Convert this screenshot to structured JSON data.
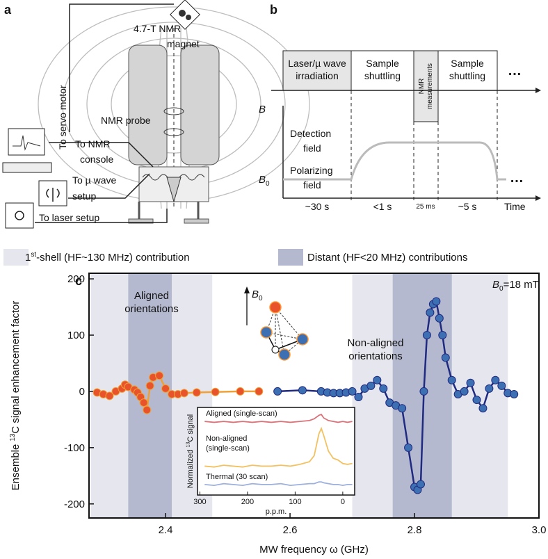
{
  "panel_a": {
    "label": "a",
    "magnet": [
      "4.7-T NMR",
      "magnet"
    ],
    "servo": "To servo motor",
    "probe": "NMR probe",
    "console": [
      "To NMR",
      "console"
    ],
    "microwave": [
      "To µ wave",
      "setup"
    ],
    "laser": "To laser setup"
  },
  "panel_b": {
    "label": "b",
    "steps": [
      [
        "Laser/µ wave",
        "irradiation"
      ],
      [
        "Sample",
        "shuttling"
      ],
      [
        "NMR",
        "measurements"
      ],
      [
        "Sample",
        "shuttling"
      ]
    ],
    "ellipsis": "…",
    "b_axis": "B",
    "b0": [
      "B",
      "0"
    ],
    "detection": [
      "Detection",
      "field"
    ],
    "polarizing": [
      "Polarizing",
      "field"
    ],
    "durations": [
      "~30 s",
      "<1 s",
      "25 ms",
      "~5 s"
    ],
    "time_axis": "Time"
  },
  "legend": [
    {
      "pre": "1",
      "sup": "st",
      "post": "-shell (HF~130 MHz) contribution",
      "color": "#e6e6ee"
    },
    {
      "text": "Distant (HF<20 MHz) contributions",
      "color": "#b4b9cf"
    }
  ],
  "chart_data": [
    {
      "type": "scatter",
      "panel_label": "c",
      "xlabel": "MW frequency ω (GHz)",
      "ylabel": {
        "pre": "Ensemble ",
        "sup": "13",
        "post": "C signal enhancement factor"
      },
      "xlim": [
        2.277,
        3.0
      ],
      "ylim": [
        -225,
        210
      ],
      "xticks": [
        2.4,
        2.6,
        2.8,
        {
          "value": 3.0,
          "label": "3.0"
        }
      ],
      "yticks": [
        -200,
        -100,
        0,
        100,
        200
      ],
      "bands": [
        {
          "start": 2.28,
          "end": 2.475,
          "color": "#e6e6ee"
        },
        {
          "start": 2.7,
          "end": 2.95,
          "color": "#e6e6ee"
        },
        {
          "start": 2.34,
          "end": 2.41,
          "color": "#b4b9cf"
        },
        {
          "start": 2.765,
          "end": 2.86,
          "color": "#b4b9cf"
        }
      ],
      "annotations": {
        "aligned": [
          "Aligned",
          "orientations"
        ],
        "nonaligned": [
          "Non-aligned",
          "orientations"
        ],
        "field": [
          "B",
          "0",
          "=18 mT"
        ],
        "arrow": [
          "B",
          "0"
        ]
      },
      "series": [
        {
          "color": "#e8532b",
          "line_color": "#f0a035",
          "x": [
            2.29,
            2.3,
            2.31,
            2.32,
            2.33,
            2.335,
            2.34,
            2.35,
            2.355,
            2.36,
            2.365,
            2.37,
            2.375,
            2.38,
            2.39,
            2.4,
            2.41,
            2.42,
            2.43,
            2.45,
            2.48,
            2.52,
            2.55
          ],
          "values": [
            -2,
            -5,
            -8,
            0,
            5,
            12,
            8,
            3,
            -2,
            -10,
            -20,
            -33,
            10,
            25,
            28,
            5,
            -5,
            -5,
            -3,
            -2,
            -1,
            0,
            0
          ]
        },
        {
          "color": "#3d6fb3",
          "line_color": "#1f2a80",
          "x": [
            2.58,
            2.62,
            2.65,
            2.66,
            2.67,
            2.68,
            2.69,
            2.7,
            2.71,
            2.72,
            2.73,
            2.74,
            2.75,
            2.76,
            2.77,
            2.78,
            2.79,
            2.8,
            2.805,
            2.81,
            2.815,
            2.82,
            2.825,
            2.83,
            2.835,
            2.84,
            2.845,
            2.85,
            2.86,
            2.87,
            2.88,
            2.89,
            2.9,
            2.91,
            2.92,
            2.93,
            2.94,
            2.95,
            2.96
          ],
          "values": [
            0,
            2,
            0,
            -2,
            -3,
            -3,
            -2,
            0,
            -10,
            5,
            10,
            20,
            5,
            -20,
            -25,
            -30,
            -100,
            -170,
            -175,
            -165,
            0,
            100,
            140,
            155,
            160,
            130,
            100,
            60,
            20,
            -5,
            0,
            15,
            -15,
            -30,
            5,
            20,
            10,
            -3,
            -5
          ]
        }
      ]
    },
    {
      "type": "line",
      "xlabel": "p.p.m.",
      "ylabel": {
        "pre": "Normalized ",
        "sup": "13",
        "post": "C signal"
      },
      "xlim": [
        305,
        -25
      ],
      "ylim": [
        0,
        10
      ],
      "xticks": [
        300,
        200,
        100,
        0
      ],
      "x": [
        290,
        270,
        250,
        230,
        210,
        190,
        170,
        150,
        130,
        110,
        90,
        70,
        60,
        50,
        45,
        40,
        30,
        20,
        10,
        0,
        -10,
        -20
      ],
      "series": [
        {
          "label_lines": [
            "Aligned (single-scan)"
          ],
          "color": "#d9737a",
          "values": [
            8.4,
            8.3,
            8.4,
            8.3,
            8.4,
            8.3,
            8.4,
            8.3,
            8.4,
            8.3,
            8.4,
            8.5,
            8.7,
            9.1,
            9.2,
            8.8,
            8.5,
            8.4,
            8.3,
            8.4,
            8.3,
            8.4
          ]
        },
        {
          "label_lines": [
            "Non-aligned",
            "(single-scan)"
          ],
          "color": "#f2c162",
          "values": [
            3.3,
            3.2,
            3.4,
            3.3,
            3.2,
            3.4,
            3.3,
            3.3,
            3.4,
            3.3,
            3.5,
            3.8,
            4.5,
            7.0,
            7.6,
            6.8,
            5.0,
            4.2,
            4.0,
            3.6,
            3.5,
            3.6
          ]
        },
        {
          "label_lines": [
            "Thermal (30 scan)"
          ],
          "color": "#9db0dc",
          "values": [
            1.2,
            1.1,
            1.3,
            1.2,
            1.1,
            1.3,
            1.2,
            1.2,
            1.3,
            1.1,
            1.2,
            1.3,
            1.3,
            1.5,
            1.5,
            1.4,
            1.3,
            1.2,
            1.2,
            1.1,
            1.2,
            1.2
          ]
        }
      ]
    }
  ]
}
